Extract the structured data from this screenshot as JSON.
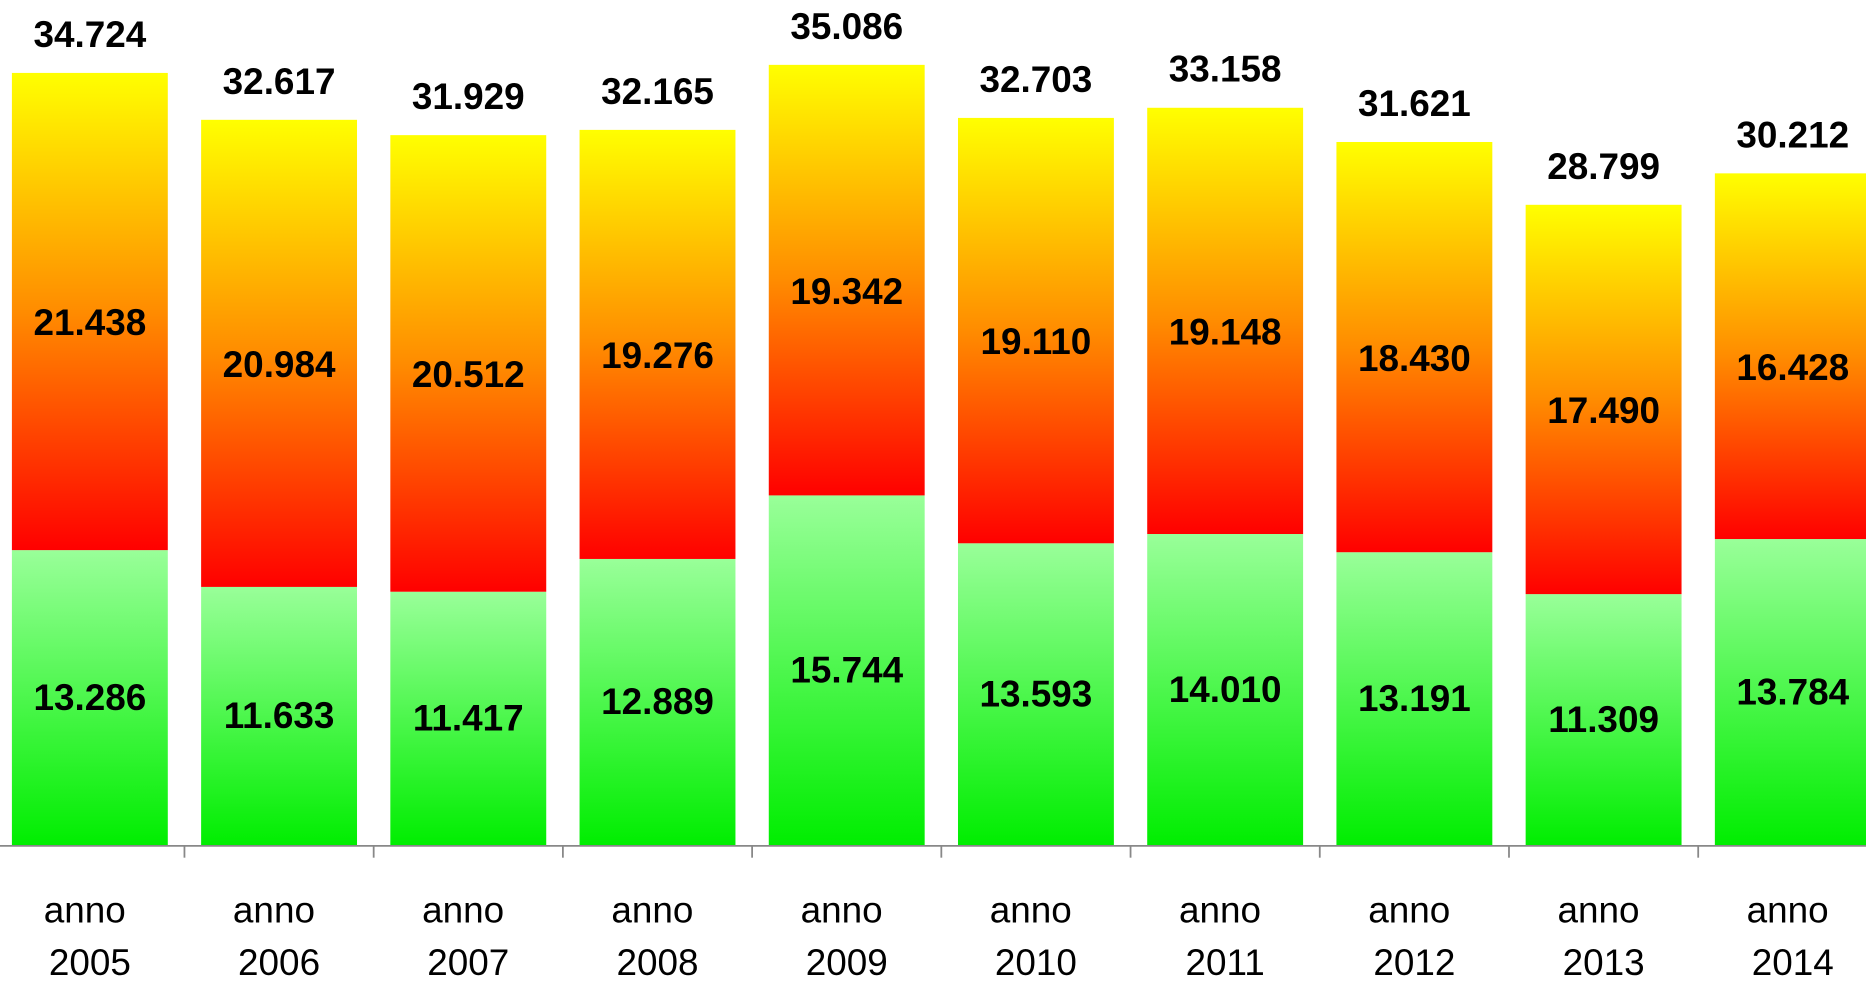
{
  "chart_data": {
    "type": "stacked_bar",
    "categories": [
      "anno 2005",
      "anno 2006",
      "anno 2007",
      "anno 2008",
      "anno 2009",
      "anno 2010",
      "anno 2011",
      "anno 2012",
      "anno 2013",
      "anno 2014"
    ],
    "series": [
      {
        "color": [
          "#99ff99",
          "#00ee00"
        ],
        "values": [
          13286,
          11633,
          11417,
          12889,
          15744,
          13593,
          14010,
          13191,
          11309,
          13784
        ],
        "value_labels": [
          "13.286",
          "11.633",
          "11.417",
          "12.889",
          "15.744",
          "13.593",
          "14.010",
          "13.191",
          "11.309",
          "13.784"
        ]
      },
      {
        "color": [
          "#ffff00",
          "#ff8c00",
          "#ff0000"
        ],
        "values": [
          21438,
          20984,
          20512,
          19276,
          19342,
          19110,
          19148,
          18430,
          17490,
          16428
        ],
        "value_labels": [
          "21.438",
          "20.984",
          "20.512",
          "19.276",
          "19.342",
          "19.110",
          "19.148",
          "18.430",
          "17.490",
          "16.428"
        ]
      }
    ],
    "totals": {
      "values": [
        34724,
        32617,
        31929,
        32165,
        35086,
        32703,
        33158,
        31621,
        28799,
        30212
      ],
      "value_labels": [
        "34.724",
        "32.617",
        "31.929",
        "32.165",
        "35.086",
        "32.703",
        "33.158",
        "31.621",
        "28.799",
        "30.212"
      ]
    },
    "ylim": [
      0,
      38000
    ]
  }
}
